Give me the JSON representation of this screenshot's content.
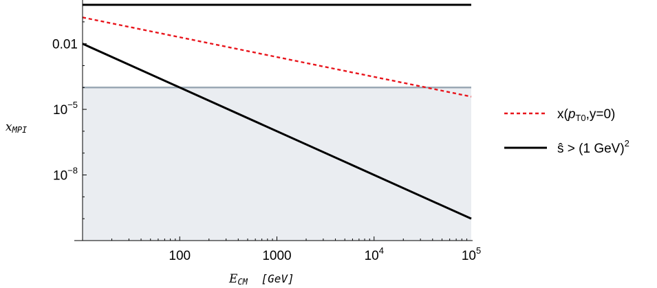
{
  "chart_data": {
    "type": "line",
    "xlabel": {
      "var": "E",
      "sub": "CM",
      "unit": "[GeV]"
    },
    "ylabel": {
      "var": "x",
      "sub": "MPI"
    },
    "x_scale": "log",
    "y_scale": "log",
    "xlim": [
      10,
      100000
    ],
    "ylim": [
      1e-11,
      1
    ],
    "x_ticks": [
      {
        "value": 100,
        "base": "100",
        "exp": ""
      },
      {
        "value": 1000,
        "base": "1000",
        "exp": ""
      },
      {
        "value": 10000,
        "base": "10",
        "exp": "4"
      },
      {
        "value": 100000,
        "base": "10",
        "exp": "5"
      }
    ],
    "y_ticks": [
      {
        "value": 0.01,
        "base": "0.01",
        "exp": ""
      },
      {
        "value": 1e-05,
        "base": "10",
        "exp": "−5"
      },
      {
        "value": 1e-08,
        "base": "10",
        "exp": "−8"
      }
    ],
    "series": [
      {
        "name": "x(p_T0,y=0)",
        "style": "dashed",
        "color": "#e8141b",
        "x": [
          10,
          100000
        ],
        "y": [
          0.16,
          3.8e-05
        ]
      },
      {
        "name": "ŝ > (1 GeV)^2",
        "style": "solid",
        "color": "#000000",
        "x": [
          10,
          100000
        ],
        "y": [
          0.01,
          1e-10
        ]
      }
    ],
    "reference_lines": [
      {
        "kind": "horizontal",
        "color": "#000000",
        "y": 0.6
      },
      {
        "kind": "horizontal",
        "color": "#9aa8b4",
        "y": 0.0001
      }
    ],
    "shaded_region": {
      "color": "#eaedf1",
      "y_from": 1e-11,
      "y_to": 0.0001
    },
    "legend": {
      "placement": "right",
      "entries": [
        {
          "label": "x(",
          "italic": "p",
          "sub": "T0",
          "tail": ",y=0)",
          "style": "dashed",
          "color": "#e8141b"
        },
        {
          "label": "ŝ > (1 GeV)",
          "sup": "2",
          "style": "solid",
          "color": "#000000"
        }
      ]
    },
    "grid": false
  }
}
